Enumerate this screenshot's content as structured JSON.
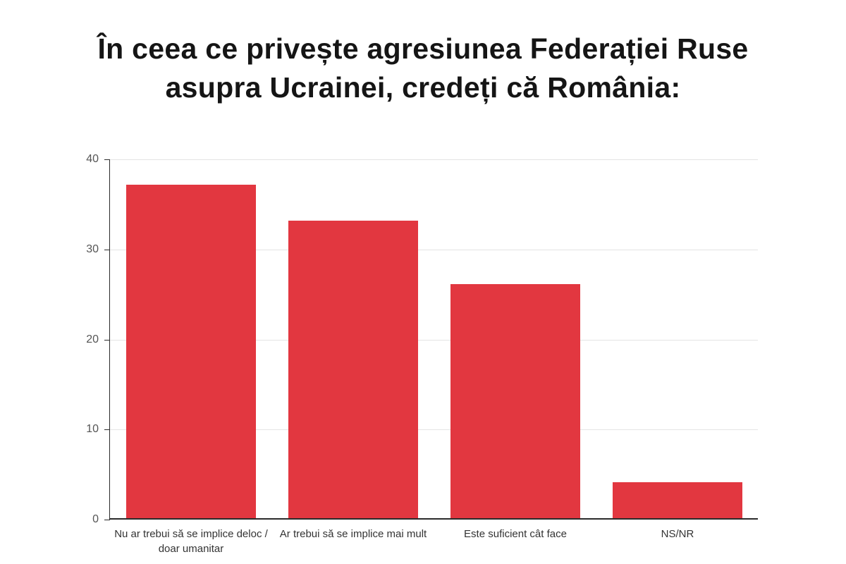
{
  "title_lines": [
    "În ceea ce privește agresiunea Federației Ruse",
    "asupra Ucrainei, credeți că România:"
  ],
  "chart_data": {
    "type": "bar",
    "title": "În ceea ce privește agresiunea Federației Ruse asupra Ucrainei, credeți că România:",
    "categories": [
      "Nu ar trebui să se implice deloc / doar umanitar",
      "Ar trebui să se implice mai mult",
      "Este suficient cât face",
      "NS/NR"
    ],
    "values": [
      37,
      33,
      26,
      4
    ],
    "xlabel": "",
    "ylabel": "",
    "ylim": [
      0,
      40
    ],
    "yticks": [
      0,
      10,
      20,
      30,
      40
    ],
    "bar_color": "#e23740",
    "grid": "horizontal-light",
    "legend": "none",
    "background": "#ffffff",
    "axis_color": "#2b2b2b",
    "grid_color": "#e4e4e4",
    "tick_label_color": "#555555",
    "category_label_color": "#333333"
  }
}
